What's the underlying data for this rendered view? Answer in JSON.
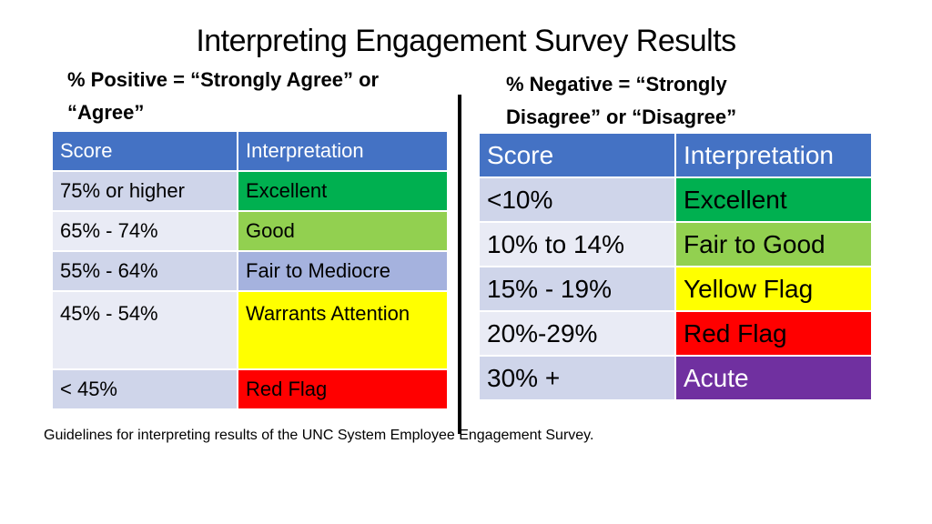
{
  "title": "Interpreting Engagement Survey Results",
  "positive": {
    "heading": "% Positive = “Strongly Agree” or “Agree”",
    "columns": [
      "Score",
      "Interpretation"
    ],
    "rows": [
      {
        "score": "75% or higher",
        "interpretation": "Excellent",
        "color": "#00b050"
      },
      {
        "score": "65% - 74%",
        "interpretation": "Good",
        "color": "#92d050"
      },
      {
        "score": "55% - 64%",
        "interpretation": "Fair to Mediocre",
        "color": "#a5b2de"
      },
      {
        "score": "45% - 54%",
        "interpretation": "Warrants Attention",
        "color": "#ffff00"
      },
      {
        "score": "< 45%",
        "interpretation": "Red Flag",
        "color": "#ff0000"
      }
    ]
  },
  "negative": {
    "heading": "% Negative = “Strongly Disagree” or “Disagree”",
    "columns": [
      "Score",
      "Interpretation"
    ],
    "rows": [
      {
        "score": "<10%",
        "interpretation": "Excellent",
        "color": "#00b050"
      },
      {
        "score": "10% to 14%",
        "interpretation": "Fair to Good",
        "color": "#92d050"
      },
      {
        "score": "15% - 19%",
        "interpretation": "Yellow Flag",
        "color": "#ffff00"
      },
      {
        "score": "20%-29%",
        "interpretation": "Red Flag",
        "color": "#ff0000"
      },
      {
        "score": "30% +",
        "interpretation": "Acute",
        "color": "#7030a0"
      }
    ]
  },
  "caption": "Guidelines for interpreting results of the UNC System Employee Engagement Survey."
}
